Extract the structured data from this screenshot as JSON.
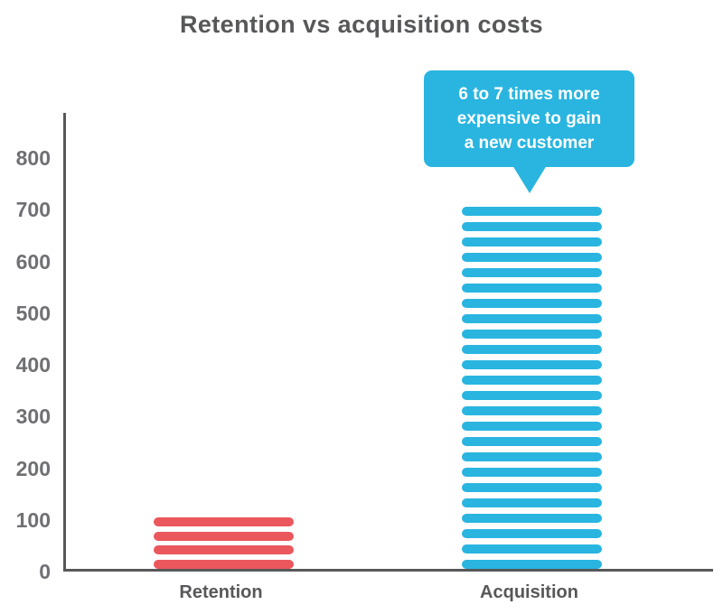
{
  "chart_data": {
    "type": "bar",
    "title": "Retention vs acquisition costs",
    "categories": [
      "Retention",
      "Acquisition"
    ],
    "values": [
      100,
      700
    ],
    "series_colors": [
      "#ea575c",
      "#29b5e0"
    ],
    "bar_style": "horizontal-stripes",
    "yticks": [
      0,
      100,
      200,
      300,
      400,
      500,
      600,
      700,
      800
    ],
    "ylim": [
      0,
      880
    ],
    "xlabel": "",
    "ylabel": "",
    "grid": false,
    "legend": false,
    "axis_color": "#57585a",
    "tick_label_color": "#6f7073",
    "title_color": "#57585a",
    "category_label_color": "#57585a",
    "annotation": {
      "target_category": "Acquisition",
      "text": "6 to 7 times more expensive to gain a new customer",
      "lines": [
        "6 to 7 times more",
        "expensive to gain",
        "a new customer"
      ],
      "color": "#29b5e0",
      "text_color": "#ffffff"
    }
  }
}
